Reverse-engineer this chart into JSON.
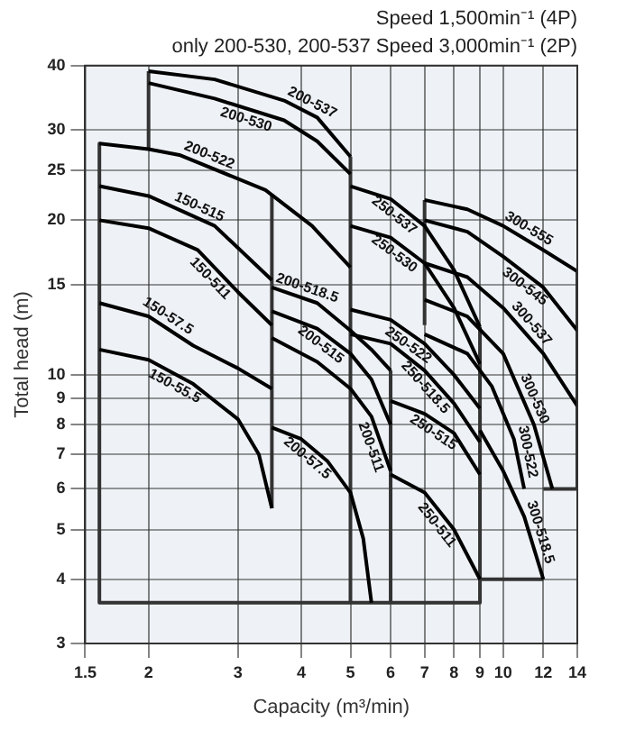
{
  "chart_data": {
    "type": "line",
    "title": "Speed 1,500min⁻¹ (4P)",
    "subtitle": "only 200-530, 200-537 Speed 3,000min⁻¹ (2P)",
    "xlabel": "Capacity (m³/min)",
    "ylabel": "Total head (m)",
    "log": "xy",
    "grid": true,
    "legend": false,
    "marker": "none",
    "line_style": "solid",
    "xlim": [
      1.5,
      14
    ],
    "xticks": [
      1.5,
      2,
      3,
      4,
      5,
      6,
      7,
      8,
      9,
      10,
      12,
      14
    ],
    "ylim": [
      3,
      40
    ],
    "yticks": [
      3,
      4,
      5,
      6,
      7,
      8,
      9,
      10,
      15,
      20,
      25,
      30,
      40
    ],
    "series": [
      {
        "name": "200-537",
        "color": "#000000",
        "x": [
          2,
          2.7,
          3.7,
          4.3,
          5
        ],
        "values": [
          39,
          37.6,
          34.2,
          31.7,
          26.6
        ]
      },
      {
        "name": "200-530",
        "color": "#000000",
        "x": [
          2,
          2.7,
          3.7,
          4.3,
          5
        ],
        "values": [
          37,
          34.5,
          31.3,
          28.5,
          24.6
        ]
      },
      {
        "name": "200-522",
        "color": "#000000",
        "x": [
          1.6,
          2,
          2.3,
          3.4,
          4.2,
          5
        ],
        "values": [
          28.2,
          27.5,
          26.8,
          22.9,
          19.5,
          16.2
        ]
      },
      {
        "name": "150-515",
        "color": "#000000",
        "x": [
          1.6,
          2,
          2.7,
          3.5
        ],
        "values": [
          23.3,
          22.3,
          19.5,
          15.3
        ]
      },
      {
        "name": "150-511",
        "color": "#000000",
        "x": [
          1.6,
          2,
          2.5,
          3,
          3.5
        ],
        "values": [
          20,
          19.3,
          17.5,
          14.5,
          12.5
        ]
      },
      {
        "name": "150-57.5",
        "color": "#000000",
        "x": [
          1.6,
          2,
          2.45,
          3,
          3.5
        ],
        "values": [
          13.8,
          13,
          11.4,
          10.3,
          9.4
        ]
      },
      {
        "name": "150-55.5",
        "color": "#000000",
        "x": [
          1.6,
          2,
          2.45,
          3,
          3.3,
          3.5
        ],
        "values": [
          11.2,
          10.7,
          9.6,
          8.2,
          7,
          5.5
        ]
      },
      {
        "name": "200-518.5",
        "color": "#000000",
        "x": [
          3.5,
          4.3,
          5,
          5.5,
          6
        ],
        "values": [
          14.8,
          13.8,
          12.2,
          11.2,
          10.2
        ]
      },
      {
        "name": "200-515",
        "color": "#000000",
        "x": [
          3.5,
          4.3,
          5,
          5.5,
          6
        ],
        "values": [
          13.3,
          12.3,
          11,
          9.8,
          8
        ]
      },
      {
        "name": "200-511",
        "color": "#000000",
        "x": [
          3.5,
          4.3,
          5,
          5.5,
          6
        ],
        "values": [
          11.8,
          10.6,
          9.4,
          8.3,
          6.5
        ]
      },
      {
        "name": "200-57.5",
        "color": "#000000",
        "x": [
          3.5,
          4,
          4.5,
          5,
          5.3,
          5.5
        ],
        "values": [
          7.9,
          7.5,
          6.8,
          5.9,
          4.8,
          3.6
        ]
      },
      {
        "name": "250-537",
        "color": "#000000",
        "x": [
          5,
          6,
          7,
          8,
          9
        ],
        "values": [
          23.3,
          22,
          19.5,
          16,
          12.4
        ]
      },
      {
        "name": "250-530",
        "color": "#000000",
        "x": [
          5,
          6,
          7,
          8,
          9
        ],
        "values": [
          19.5,
          18.5,
          16.5,
          13.5,
          10.5
        ]
      },
      {
        "name": "250-522",
        "color": "#000000",
        "x": [
          5,
          6,
          7,
          8,
          9
        ],
        "values": [
          13.4,
          12.8,
          11.5,
          10,
          8.6
        ]
      },
      {
        "name": "250-518.5",
        "color": "#000000",
        "x": [
          5,
          6,
          7,
          8,
          9
        ],
        "values": [
          12,
          11.5,
          10.2,
          8.8,
          7.4
        ]
      },
      {
        "name": "250-515",
        "color": "#000000",
        "x": [
          6,
          7,
          8,
          9
        ],
        "values": [
          8.9,
          8.4,
          7.7,
          6.4
        ]
      },
      {
        "name": "250-511",
        "color": "#000000",
        "x": [
          6,
          7,
          8,
          9
        ],
        "values": [
          6.4,
          5.9,
          5,
          4
        ]
      },
      {
        "name": "300-555",
        "color": "#000000",
        "x": [
          7,
          8.5,
          10,
          12,
          14
        ],
        "values": [
          21.9,
          21,
          19.5,
          17.5,
          15.9
        ]
      },
      {
        "name": "300-545",
        "color": "#000000",
        "x": [
          7,
          8.5,
          10,
          12,
          14
        ],
        "values": [
          20,
          19,
          17,
          14.8,
          12.2
        ]
      },
      {
        "name": "300-537",
        "color": "#000000",
        "x": [
          7,
          8.5,
          10,
          12,
          14
        ],
        "values": [
          16.5,
          15.5,
          13.5,
          11,
          8.7
        ]
      },
      {
        "name": "300-530",
        "color": "#000000",
        "x": [
          7,
          8.5,
          10,
          11.5,
          12.5
        ],
        "values": [
          14,
          13,
          11,
          8,
          6
        ]
      },
      {
        "name": "300-522",
        "color": "#000000",
        "x": [
          7,
          8.5,
          9.5,
          10.5,
          11
        ],
        "values": [
          12,
          11,
          9.5,
          7.5,
          6
        ]
      },
      {
        "name": "300-518.5",
        "color": "#000000",
        "x": [
          9,
          10,
          11,
          12
        ],
        "values": [
          7.8,
          6.5,
          5.3,
          4
        ]
      },
      {
        "color": "#333333",
        "x": [
          1.6,
          1.6,
          9,
          9,
          12
        ],
        "values": [
          28.2,
          3.6,
          3.6,
          4,
          4
        ]
      },
      {
        "color": "#333333",
        "x": [
          12,
          14,
          14
        ],
        "values": [
          6,
          6,
          15.9
        ]
      },
      {
        "color": "#333333",
        "x": [
          2,
          2
        ],
        "values": [
          27.5,
          39
        ]
      },
      {
        "color": "#333333",
        "x": [
          3.5,
          3.5
        ],
        "values": [
          5.5,
          22.5
        ]
      },
      {
        "color": "#333333",
        "x": [
          5,
          5
        ],
        "values": [
          3.6,
          26.6
        ]
      },
      {
        "color": "#333333",
        "x": [
          6,
          6
        ],
        "values": [
          3.6,
          10.2
        ]
      },
      {
        "color": "#333333",
        "x": [
          7,
          7
        ],
        "values": [
          12.5,
          21.9
        ]
      },
      {
        "color": "#333333",
        "x": [
          9,
          9
        ],
        "values": [
          4,
          12.4
        ]
      }
    ]
  }
}
